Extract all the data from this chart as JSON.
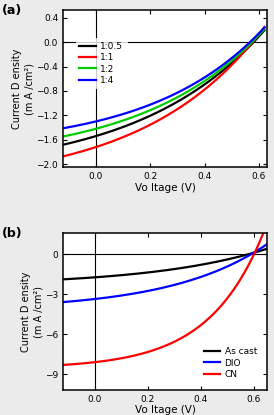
{
  "panel_a": {
    "xlabel": "Vo ltage (V)",
    "ylabel": "Current D ensity\n(m A /cm²)",
    "xlim": [
      -0.12,
      0.63
    ],
    "ylim": [
      -2.05,
      0.52
    ],
    "xticks": [
      0.0,
      0.2,
      0.4,
      0.6
    ],
    "yticks": [
      -2.0,
      -1.6,
      -1.2,
      -0.8,
      -0.4,
      0.0,
      0.4
    ],
    "curves": [
      {
        "label": "1:0.5",
        "color": "#000000",
        "Jsc": -1.54,
        "Voc": 0.58,
        "n": 18
      },
      {
        "label": "1:1",
        "color": "#ff0000",
        "Jsc": -1.72,
        "Voc": 0.576,
        "n": 17
      },
      {
        "label": "1:2",
        "color": "#00cc00",
        "Jsc": -1.42,
        "Voc": 0.574,
        "n": 17
      },
      {
        "label": "1:4",
        "color": "#0000ff",
        "Jsc": -1.3,
        "Voc": 0.567,
        "n": 16
      }
    ]
  },
  "panel_b": {
    "xlabel": "Vo ltage (V)",
    "ylabel": "Current D ensity\n(m A /cm²)",
    "xlim": [
      -0.12,
      0.65
    ],
    "ylim": [
      -10.2,
      1.6
    ],
    "xticks": [
      0.0,
      0.2,
      0.4,
      0.6
    ],
    "yticks": [
      -9,
      -6,
      -3,
      0
    ],
    "curves": [
      {
        "label": "As cast",
        "color": "#000000",
        "Jsc": -1.72,
        "Voc": 0.576,
        "n": 17
      },
      {
        "label": "DIO",
        "color": "#0000ff",
        "Jsc": -3.35,
        "Voc": 0.588,
        "n": 14
      },
      {
        "label": "CN",
        "color": "#ff0000",
        "Jsc": -8.1,
        "Voc": 0.6,
        "n": 8
      }
    ]
  },
  "background_color": "#ebebeb",
  "linewidth": 1.6
}
